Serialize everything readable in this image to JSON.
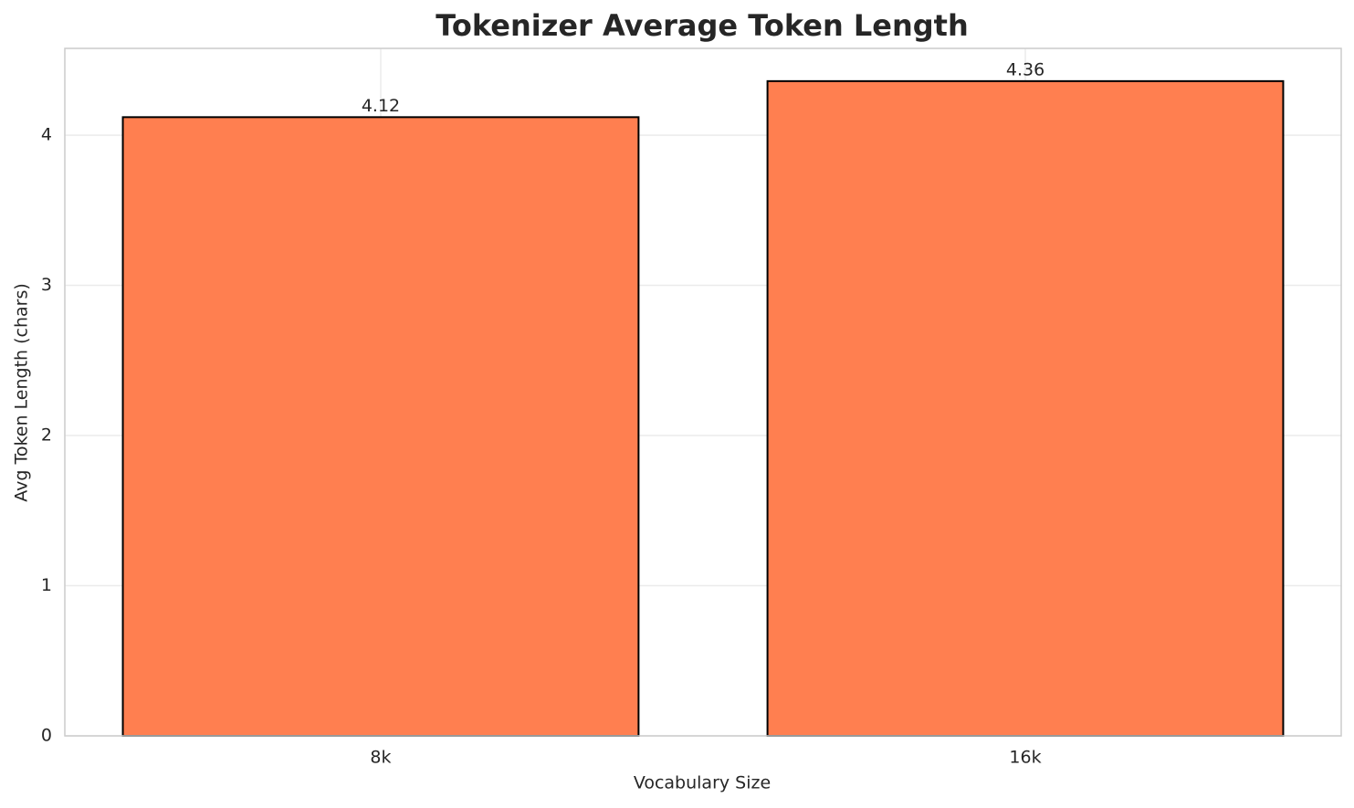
{
  "chart_data": {
    "type": "bar",
    "title": "Tokenizer Average Token Length",
    "xlabel": "Vocabulary Size",
    "ylabel": "Avg Token Length (chars)",
    "categories": [
      "8k",
      "16k"
    ],
    "values": [
      4.12,
      4.36
    ],
    "color": "#ff7f50",
    "ylim": [
      0,
      4.578
    ],
    "yticks": [
      0,
      1,
      2,
      3,
      4
    ],
    "grid": true
  }
}
